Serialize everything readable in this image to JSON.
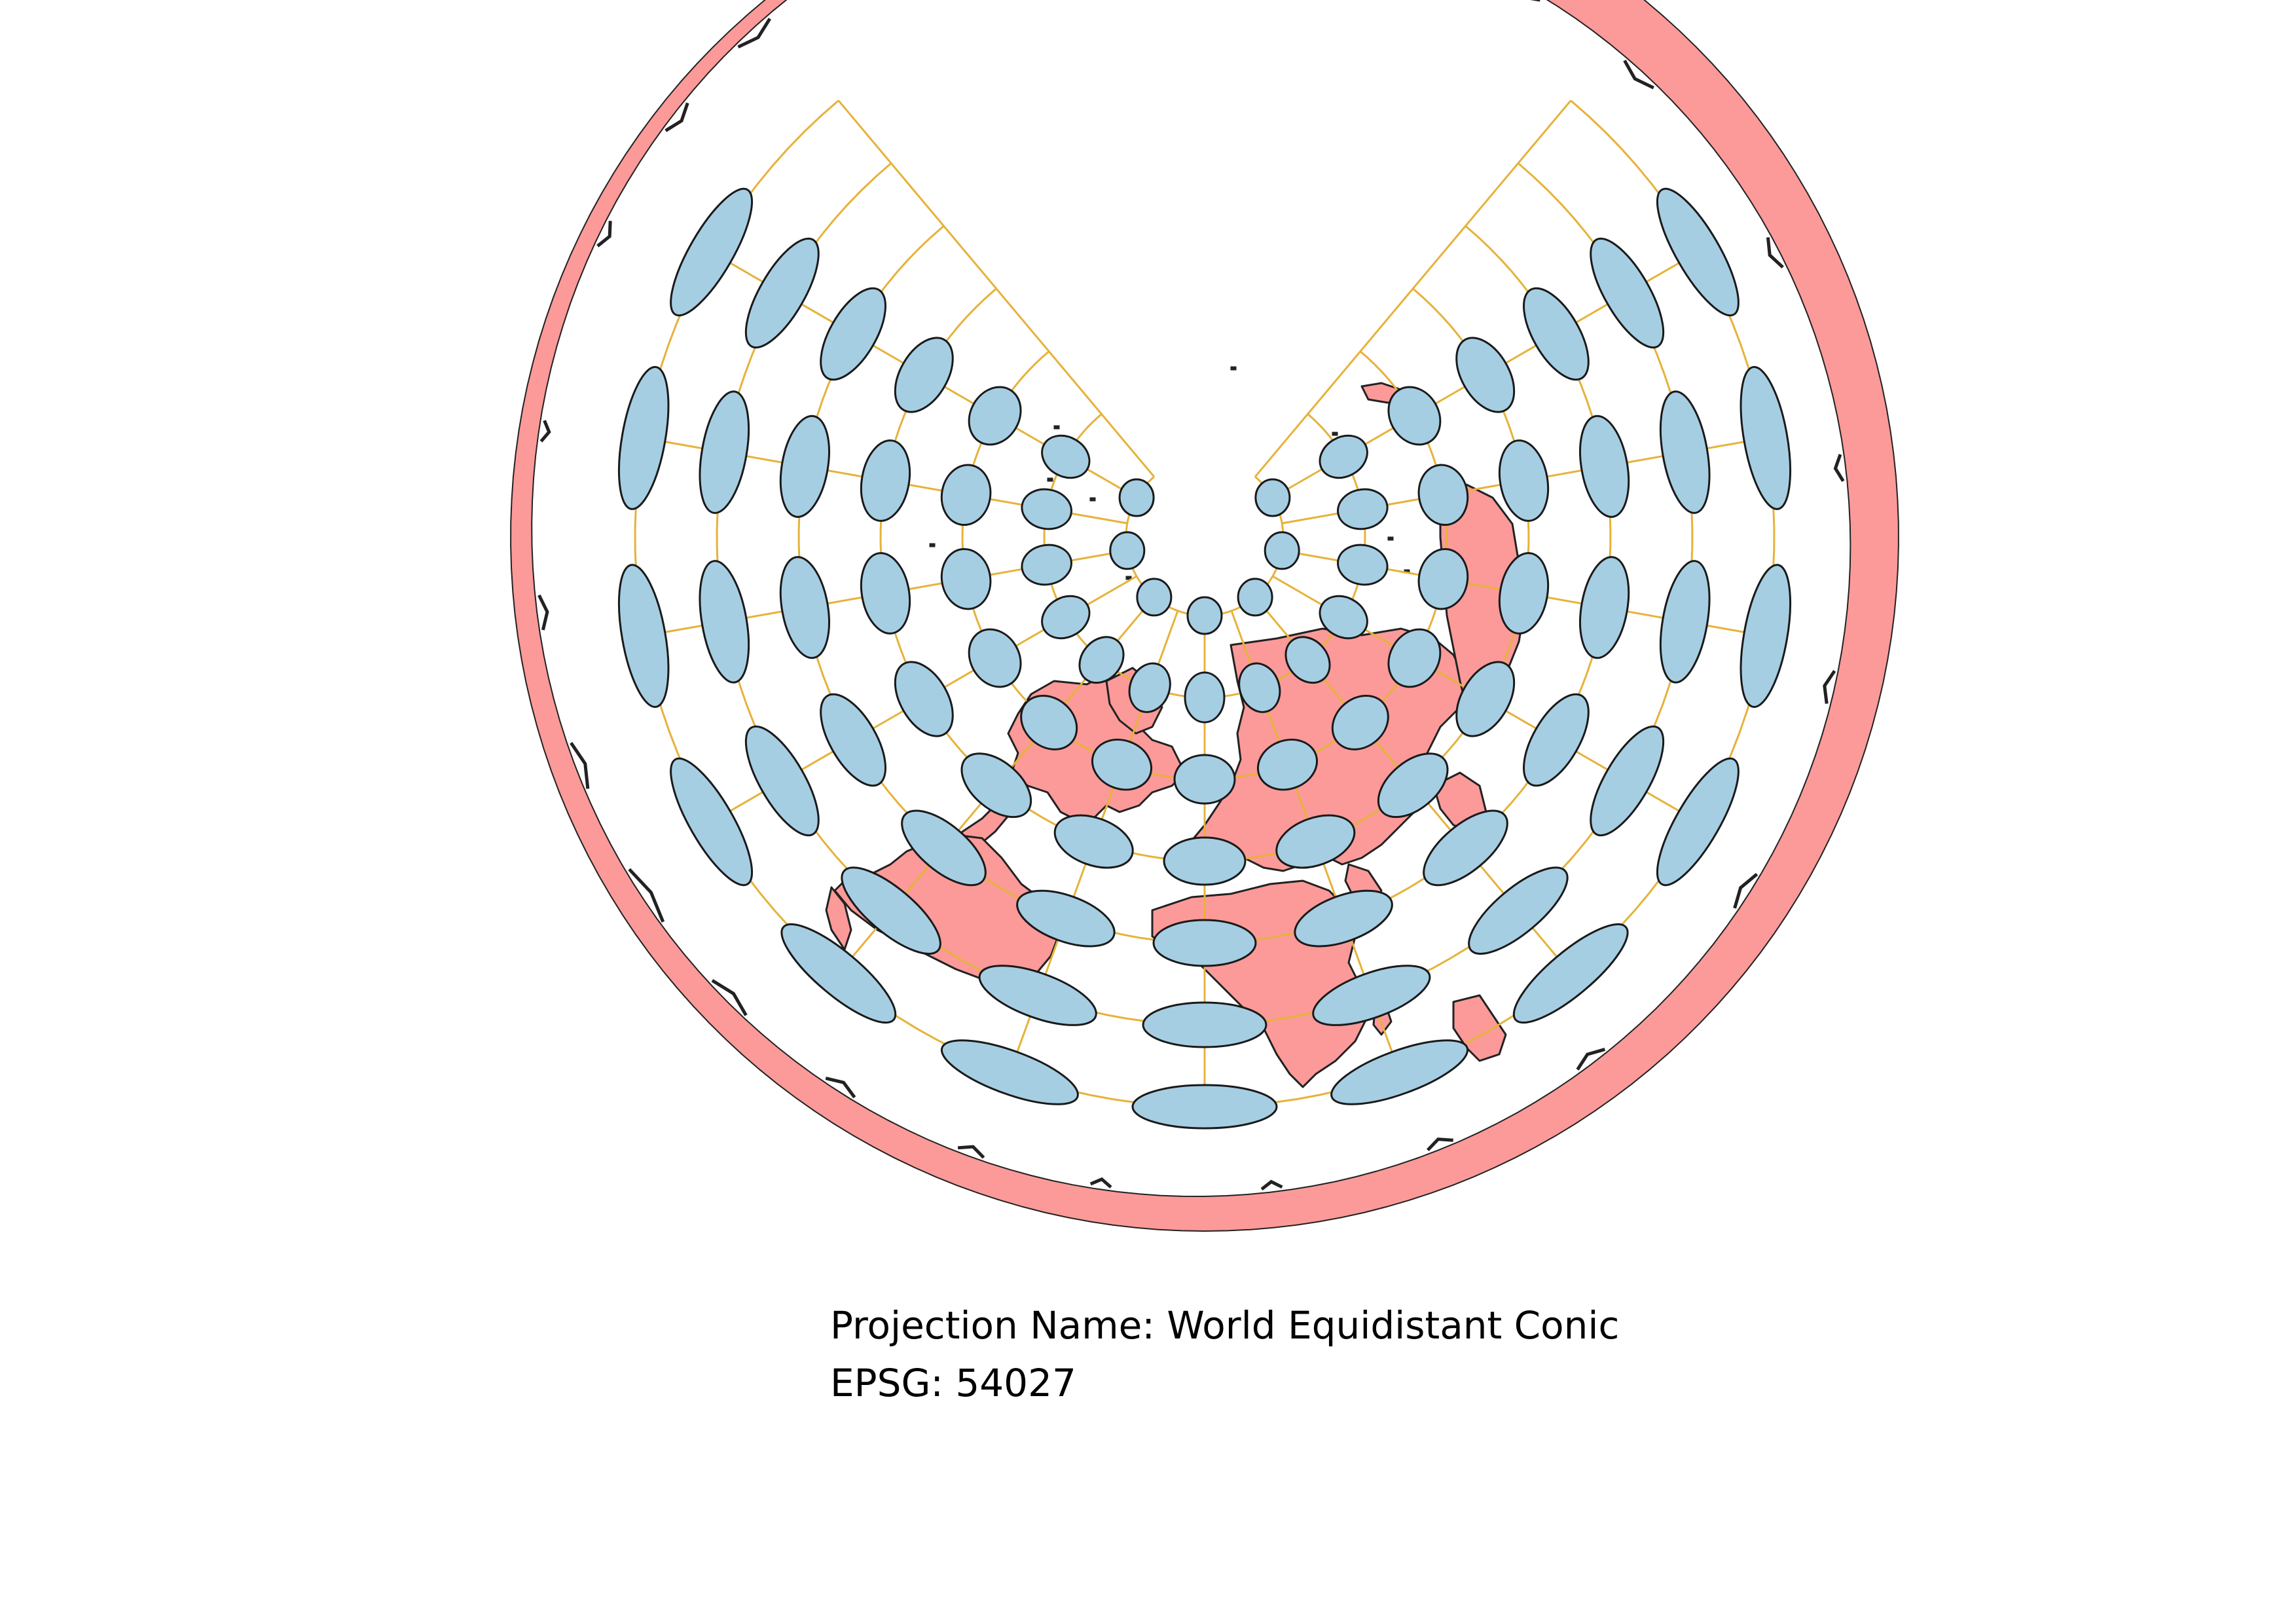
{
  "map": {
    "projection_name_label": "Projection Name:",
    "projection_name_value": "World Equidistant Conic",
    "epsg_label": "EPSG:",
    "epsg_value": "54027"
  },
  "style": {
    "land_fill": "#fb9a99",
    "land_stroke": "#222222",
    "ellipse_fill": "#a6cee3",
    "ellipse_stroke": "#1a1a1a",
    "graticule_stroke": "#e6b23a",
    "background": "#ffffff"
  }
}
